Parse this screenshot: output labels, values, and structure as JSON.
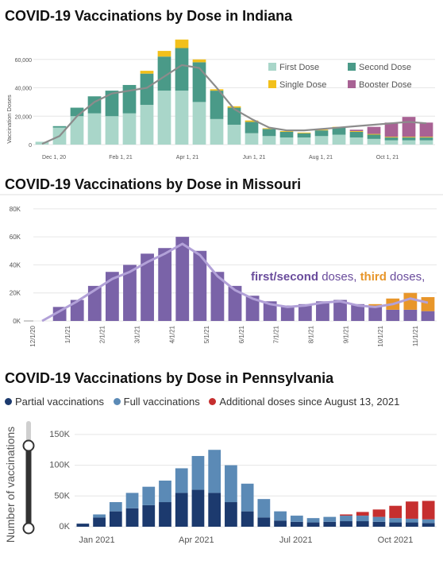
{
  "chart_data": [
    {
      "type": "bar",
      "title": "COVID-19 Vaccinations by Dose in Indiana",
      "ylabel": "Vaccination Doses",
      "ylim": [
        0,
        75000
      ],
      "yticks": [
        0,
        20000,
        40000,
        60000
      ],
      "ytick_labels": [
        "0",
        "20,000",
        "40,000",
        "60,000"
      ],
      "xtick_labels": [
        "Dec 1, 20",
        "Feb 1, 21",
        "Apr 1, 21",
        "Jun 1, 21",
        "Aug 1, 21",
        "Oct 1, 21"
      ],
      "legend": "top-right",
      "x": [
        "Dec 1, 20",
        "Dec 15, 20",
        "Jan 1, 21",
        "Jan 15, 21",
        "Feb 1, 21",
        "Feb 15, 21",
        "Mar 1, 21",
        "Mar 15, 21",
        "Apr 1, 21",
        "Apr 15, 21",
        "May 1, 21",
        "May 15, 21",
        "Jun 1, 21",
        "Jun 15, 21",
        "Jul 1, 21",
        "Jul 15, 21",
        "Aug 1, 21",
        "Aug 15, 21",
        "Sep 1, 21",
        "Sep 15, 21",
        "Oct 1, 21",
        "Oct 15, 21",
        "Nov 1, 21"
      ],
      "series": [
        {
          "name": "First Dose",
          "color": "#a9d6c9",
          "values": [
            2000,
            12000,
            20000,
            22000,
            20000,
            22000,
            28000,
            38000,
            38000,
            30000,
            18000,
            14000,
            8000,
            6000,
            5000,
            5000,
            6000,
            7000,
            5000,
            4000,
            3000,
            3000,
            3000
          ]
        },
        {
          "name": "Second Dose",
          "color": "#4a9a88",
          "values": [
            0,
            1000,
            6000,
            12000,
            18000,
            20000,
            22000,
            24000,
            30000,
            28000,
            20000,
            12000,
            8000,
            5000,
            4000,
            3000,
            4000,
            5000,
            4000,
            3000,
            2000,
            2000,
            2000
          ]
        },
        {
          "name": "Single Dose",
          "color": "#f2c01b",
          "values": [
            0,
            0,
            0,
            0,
            0,
            0,
            2000,
            4000,
            6000,
            2000,
            1000,
            1000,
            1000,
            500,
            500,
            500,
            500,
            500,
            500,
            500,
            500,
            500,
            500
          ]
        },
        {
          "name": "Booster Dose",
          "color": "#a86294",
          "values": [
            0,
            0,
            0,
            0,
            0,
            0,
            0,
            0,
            0,
            0,
            0,
            0,
            0,
            0,
            0,
            0,
            0,
            0,
            1000,
            5000,
            10000,
            14000,
            10000
          ]
        }
      ],
      "average_line": {
        "color": "#8c8c8c",
        "values": [
          500,
          6000,
          20000,
          30000,
          36000,
          38000,
          40000,
          48000,
          56000,
          54000,
          40000,
          25000,
          18000,
          12000,
          10000,
          10000,
          11000,
          12000,
          13000,
          14000,
          15000,
          16000,
          15000
        ]
      }
    },
    {
      "type": "bar",
      "title": "COVID-19 Vaccinations by Dose in Missouri",
      "ylim": [
        0,
        85000
      ],
      "yticks": [
        0,
        20000,
        40000,
        60000,
        80000
      ],
      "ytick_labels": [
        "0K",
        "20K",
        "40K",
        "60K",
        "80K"
      ],
      "xtick_labels": [
        "12/1/20",
        "1/1/21",
        "2/1/21",
        "3/1/21",
        "4/1/21",
        "5/1/21",
        "6/1/21",
        "7/1/21",
        "8/1/21",
        "9/1/21",
        "10/1/21",
        "11/1/21"
      ],
      "annotation": {
        "parts": [
          {
            "text": "first/second",
            "color": "#6a4c9c",
            "bold": true
          },
          {
            "text": " doses, ",
            "color": "#6a4c9c",
            "bold": false
          },
          {
            "text": "third",
            "color": "#e8962a",
            "bold": true
          },
          {
            "text": " doses,",
            "color": "#6a4c9c",
            "bold": false
          }
        ]
      },
      "x": [
        "12/1/20",
        "12/15/20",
        "1/1/21",
        "1/15/21",
        "2/1/21",
        "2/15/21",
        "3/1/21",
        "3/15/21",
        "4/1/21",
        "4/15/21",
        "5/1/21",
        "5/15/21",
        "6/1/21",
        "6/15/21",
        "7/1/21",
        "7/15/21",
        "8/1/21",
        "8/15/21",
        "9/1/21",
        "9/15/21",
        "10/1/21",
        "10/15/21",
        "11/1/21"
      ],
      "series": [
        {
          "name": "first/second",
          "color": "#7a63a8",
          "values": [
            0,
            10000,
            15000,
            25000,
            35000,
            40000,
            48000,
            52000,
            60000,
            50000,
            35000,
            25000,
            18000,
            14000,
            11000,
            12000,
            14000,
            15000,
            12000,
            10000,
            8000,
            8000,
            7000
          ]
        },
        {
          "name": "third",
          "color": "#e8962a",
          "values": [
            0,
            0,
            0,
            0,
            0,
            0,
            0,
            0,
            0,
            0,
            0,
            0,
            0,
            0,
            0,
            0,
            0,
            0,
            0,
            2000,
            8000,
            12000,
            10000
          ]
        }
      ],
      "average_line": {
        "color": "#b2a1d8",
        "values": [
          0,
          7000,
          14000,
          22000,
          30000,
          35000,
          42000,
          48000,
          55000,
          47000,
          32000,
          22000,
          16000,
          12000,
          10000,
          11000,
          13000,
          14000,
          11000,
          10000,
          12000,
          16000,
          13000
        ]
      }
    },
    {
      "type": "bar",
      "title": "COVID-19 Vaccinations by Dose in Pennsylvania",
      "ylabel": "Number of vaccinations",
      "ylim": [
        0,
        155000
      ],
      "yticks": [
        0,
        50000,
        100000,
        150000
      ],
      "ytick_labels": [
        "0K",
        "50K",
        "100K",
        "150K"
      ],
      "xtick_labels": [
        "Jan 2021",
        "Apr 2021",
        "Jul 2021",
        "Oct 2021"
      ],
      "legend": "top",
      "x": [
        "Dec 15, 2020",
        "Jan 1, 2021",
        "Jan 15, 2021",
        "Feb 1, 2021",
        "Feb 15, 2021",
        "Mar 1, 2021",
        "Mar 15, 2021",
        "Apr 1, 2021",
        "Apr 15, 2021",
        "May 1, 2021",
        "May 15, 2021",
        "Jun 1, 2021",
        "Jun 15, 2021",
        "Jul 1, 2021",
        "Jul 15, 2021",
        "Aug 1, 2021",
        "Aug 15, 2021",
        "Sep 1, 2021",
        "Sep 15, 2021",
        "Oct 1, 2021",
        "Oct 15, 2021",
        "Nov 1, 2021"
      ],
      "series": [
        {
          "name": "Partial vaccinations",
          "color": "#1c3a6e",
          "values": [
            5000,
            15000,
            25000,
            30000,
            35000,
            40000,
            55000,
            60000,
            55000,
            40000,
            25000,
            15000,
            10000,
            8000,
            7000,
            8000,
            9000,
            9000,
            8000,
            7000,
            7000,
            6000
          ]
        },
        {
          "name": "Full vaccinations",
          "color": "#5b8ab6",
          "values": [
            0,
            5000,
            15000,
            25000,
            30000,
            35000,
            40000,
            55000,
            70000,
            60000,
            45000,
            30000,
            15000,
            10000,
            7000,
            8000,
            9000,
            9000,
            8000,
            7000,
            6000,
            6000
          ]
        },
        {
          "name": "Additional doses since August 13, 2021",
          "color": "#c62f2f",
          "values": [
            0,
            0,
            0,
            0,
            0,
            0,
            0,
            0,
            0,
            0,
            0,
            0,
            0,
            0,
            0,
            0,
            2000,
            6000,
            12000,
            20000,
            28000,
            30000
          ]
        }
      ]
    }
  ]
}
